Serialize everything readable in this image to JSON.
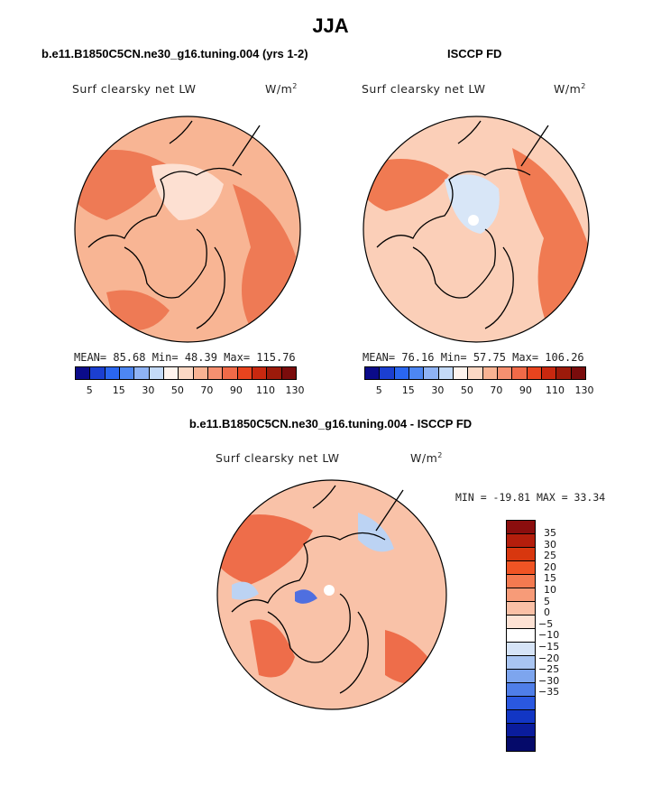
{
  "title": "JJA",
  "panels": [
    {
      "header": "b.e11.B1850C5CN.ne30_g16.tuning.004 (yrs 1-2)",
      "variable": "Surf clearsky net LW",
      "unit": "W/m",
      "unit_sup": "2",
      "stats": "MEAN=  85.68  Min=  48.39  Max= 115.76",
      "base_color": "#f8b594",
      "warm_color": "#ee7a55",
      "cool_color": "#fde0d2"
    },
    {
      "header": "ISCCP FD",
      "variable": "Surf clearsky net LW",
      "unit": "W/m",
      "unit_sup": "2",
      "stats": "MEAN=  76.16  Min=  57.75  Max= 106.26",
      "base_color": "#fbcfb8",
      "warm_color": "#f07a52",
      "cool_color": "#d8e6f7"
    }
  ],
  "abs_colorbar": {
    "colors": [
      "#0b0b8a",
      "#1b3fd1",
      "#2a66f0",
      "#4d86f2",
      "#8fb3f5",
      "#c4daf8",
      "#fff4ee",
      "#fcd8c4",
      "#f9b393",
      "#f69070",
      "#f06a48",
      "#e8441e",
      "#c8280f",
      "#9c1a0a",
      "#7a0c0c"
    ],
    "labels": [
      "5",
      "15",
      "30",
      "50",
      "70",
      "90",
      "110",
      "130"
    ]
  },
  "diff": {
    "header": "b.e11.B1850C5CN.ne30_g16.tuning.004 - ISCCP FD",
    "variable": "Surf clearsky net LW",
    "unit": "W/m",
    "unit_sup": "2",
    "stats": "MIN = -19.81 MAX =  33.34",
    "base_color": "#f9c2a8",
    "warm_color": "#ee6d4a",
    "cool_color": "#bcd3f3"
  },
  "diff_colorbar": {
    "colors": [
      "#8b0e0e",
      "#b41e0c",
      "#d8370f",
      "#f05424",
      "#f47a50",
      "#f79b78",
      "#fac0a6",
      "#fde2d4",
      "#ffffff",
      "#d6e4f7",
      "#a9c5f2",
      "#7da5ee",
      "#4f7ee8",
      "#2a58e0",
      "#1236c4",
      "#0a1c9c",
      "#050a6a"
    ],
    "labels": [
      "35",
      "30",
      "25",
      "20",
      "15",
      "10",
      "5",
      "0",
      "−5",
      "−10",
      "−15",
      "−20",
      "−25",
      "−30",
      "−35"
    ]
  }
}
